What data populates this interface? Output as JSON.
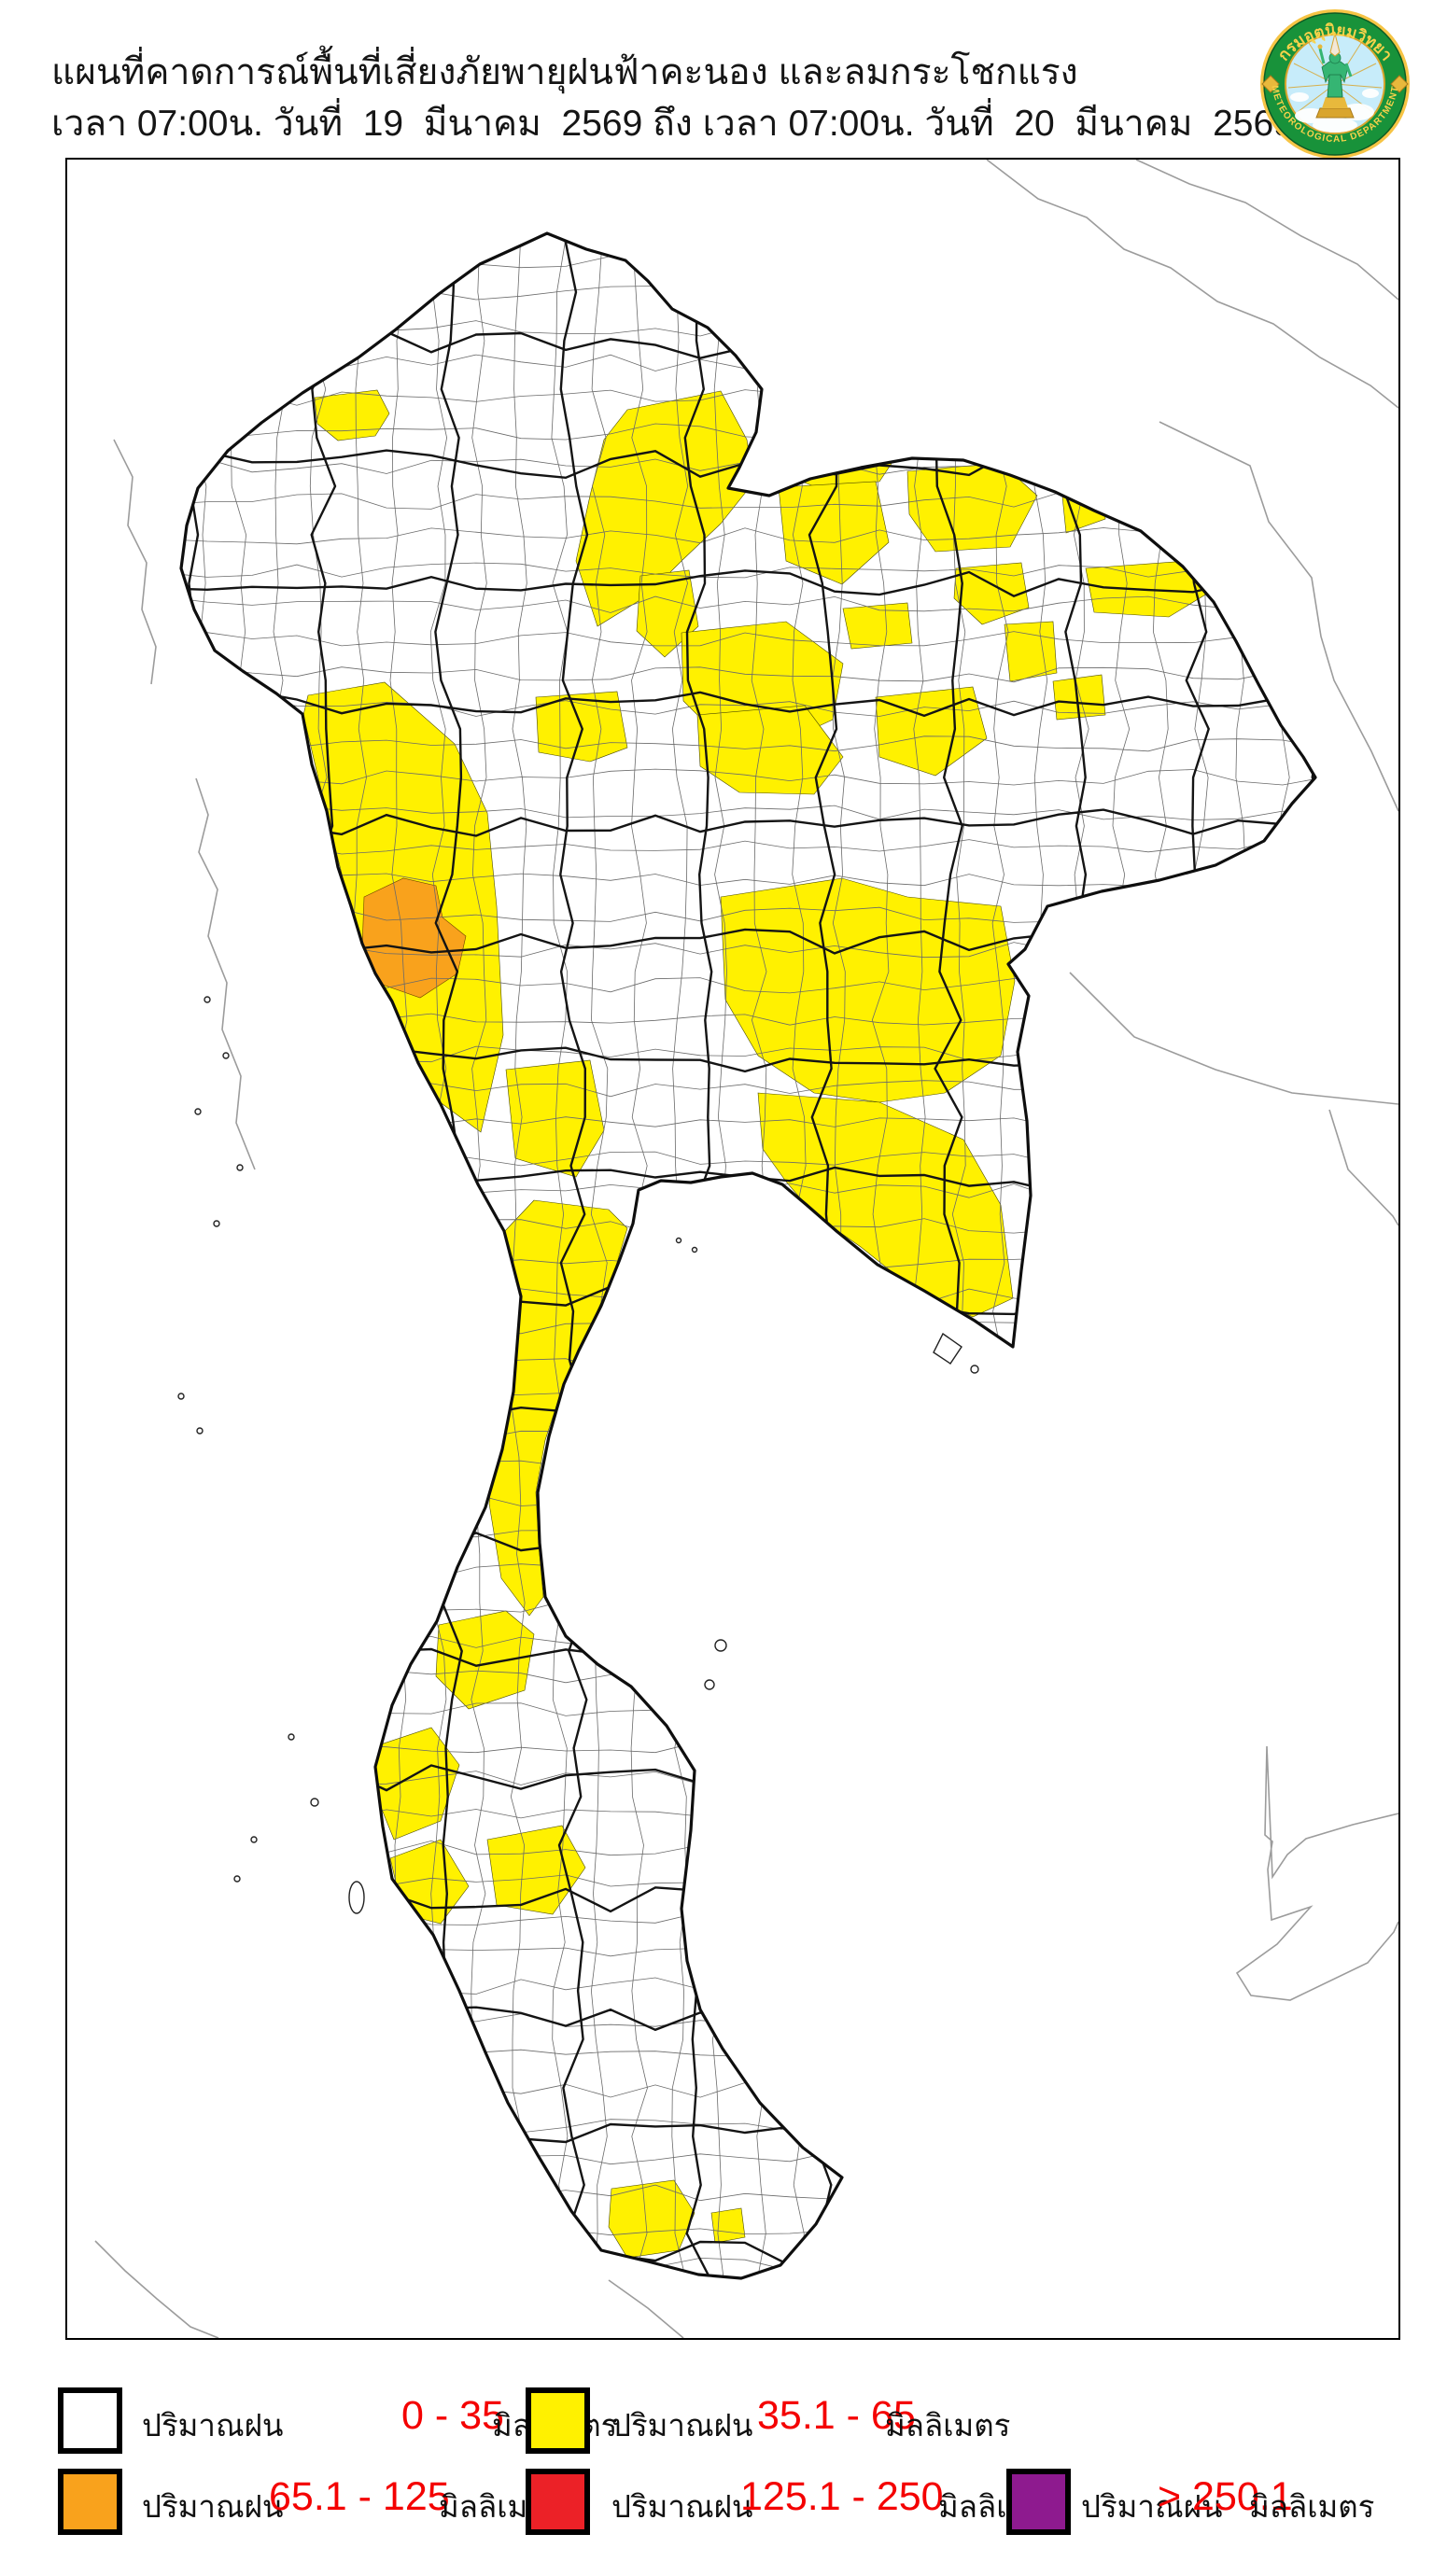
{
  "header": {
    "title_line1": "แผนที่คาดการณ์พื้นที่เสี่ยงภัยพายุฝนฟ้าคะนอง และลมกระโชกแรง",
    "title_line2": "เวลา 07:00น. วันที่  19  มีนาคม  2569 ถึง เวลา 07:00น. วันที่  20  มีนาคม  2569"
  },
  "logo": {
    "thai_text": "กรมอุตุนิยมวิทยา",
    "english_text": "METEOROLOGICAL DEPARTMENT",
    "ring_color": "#18923a",
    "gold_color": "#f6c445",
    "sky_color": "#c7ecfa"
  },
  "map": {
    "colors": {
      "none": "#ffffff",
      "yellow": "#fff100",
      "orange": "#f9a21c",
      "red": "#ec2127",
      "purple": "#8e1a8f",
      "neighbor_line": "#9c9c9c",
      "district_line": "#6a6a6a",
      "province_line": "#141414"
    }
  },
  "legend": {
    "value_color": "#f40000",
    "items": [
      {
        "label": "ปริมาณฝน",
        "range": "0 - 35",
        "unit": "มิลลิเมตร",
        "color": "#ffffff"
      },
      {
        "label": "ปริมาณฝน",
        "range": "35.1 - 65",
        "unit": "มิลลิเมตร",
        "color": "#fff100"
      },
      {
        "label": "ปริมาณฝน",
        "range": "65.1 - 125",
        "unit": "มิลลิเมตร",
        "color": "#f9a21c"
      },
      {
        "label": "ปริมาณฝน",
        "range": "125.1 - 250",
        "unit": "มิลลิเมตร",
        "color": "#ec2127"
      },
      {
        "label": "ปริมาณฝน",
        "range": "> 250.1",
        "unit": "มิลลิเมตร",
        "color": "#8e1a8f"
      }
    ]
  }
}
